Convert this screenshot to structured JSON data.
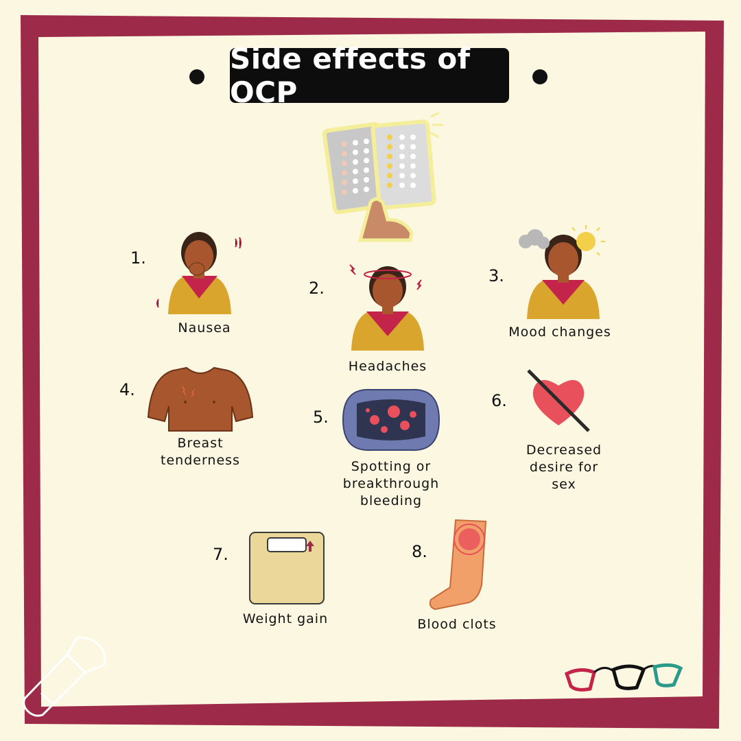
{
  "title": "Side effects of OCP",
  "items": [
    {
      "number": "1.",
      "label": "Nausea"
    },
    {
      "number": "2.",
      "label": "Headaches"
    },
    {
      "number": "3.",
      "label": "Mood changes"
    },
    {
      "number": "4.",
      "label": "Breast\ntenderness"
    },
    {
      "number": "5.",
      "label": "Spotting or\nbreakthrough\nbleeding"
    },
    {
      "number": "6.",
      "label": "Decreased\ndesire for\nsex"
    },
    {
      "number": "7.",
      "label": "Weight gain"
    },
    {
      "number": "8.",
      "label": "Blood clots"
    }
  ],
  "colors": {
    "frame": "#9c2a48",
    "background": "#fbf7e1",
    "title_bg": "#0d0d0d",
    "skin": "#a8562e",
    "shirt": "#d9a52c",
    "scarf": "#c4234a",
    "heart": "#e8505b",
    "scale": "#ecd79a",
    "pad": "#6f7ab0",
    "leg": "#f2a06a"
  },
  "icons": [
    "pill-pack-icon",
    "nausea-person-icon",
    "headache-person-icon",
    "mood-person-icon",
    "torso-icon",
    "pad-icon",
    "crossed-heart-icon",
    "scale-icon",
    "leg-icon",
    "flashlight-icon",
    "glasses-logo-icon"
  ]
}
